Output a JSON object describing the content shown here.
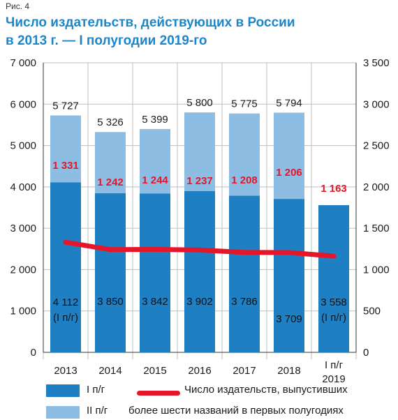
{
  "figure_label": "Рис. 4",
  "title_line1": "Число издательств, действующих в России",
  "title_line2": "в 2013 г. — I полугодии 2019-го",
  "colors": {
    "first_half": "#1f7fc3",
    "second_half": "#8ebde3",
    "line": "#e5162a",
    "title": "#1d86c8"
  },
  "chart_data": {
    "type": "bar",
    "stacked": true,
    "categories": [
      "2013",
      "2014",
      "2015",
      "2016",
      "2017",
      "2018",
      "I п/г 2019"
    ],
    "series": [
      {
        "name": "I п/г",
        "values": [
          4112,
          3850,
          3842,
          3902,
          3786,
          3709,
          3558
        ]
      },
      {
        "name": "II п/г",
        "values": [
          1615,
          1476,
          1557,
          1898,
          1989,
          2085,
          null
        ]
      }
    ],
    "totals": [
      5727,
      5326,
      5399,
      5800,
      5775,
      5794,
      null
    ],
    "total_labels": [
      "5 727",
      "5 326",
      "5 399",
      "5 800",
      "5 775",
      "5 794",
      ""
    ],
    "first_half_labels": [
      "4 112\n(I п/г)",
      "3 850",
      "3 842",
      "3 902",
      "3 786",
      "3 709",
      "3 558\n(I п/г)"
    ],
    "line_series": {
      "name": "Число издательств, выпустивших более шести названий в первых полугодиях",
      "axis": "right",
      "values": [
        1331,
        1242,
        1244,
        1237,
        1208,
        1206,
        1163
      ],
      "labels": [
        "1 331",
        "1 242",
        "1 244",
        "1 237",
        "1 208",
        "1 206",
        "1 163"
      ]
    },
    "left_axis": {
      "min": 0,
      "max": 7000,
      "step": 1000,
      "tick_labels": [
        "0",
        "1 000",
        "2 000",
        "3 000",
        "4 000",
        "5 000",
        "6 000",
        "7 000"
      ]
    },
    "right_axis": {
      "min": 0,
      "max": 3500,
      "step": 500,
      "tick_labels": [
        "0",
        "500",
        "1 000",
        "1 500",
        "2 000",
        "2 500",
        "3 000",
        "3 500"
      ]
    },
    "grid": true
  },
  "legend": {
    "first_half": "I п/г",
    "second_half": "II п/г",
    "line_text_1": "Число издательств, выпустивших",
    "line_text_2": "более шести названий в первых полугодиях"
  }
}
